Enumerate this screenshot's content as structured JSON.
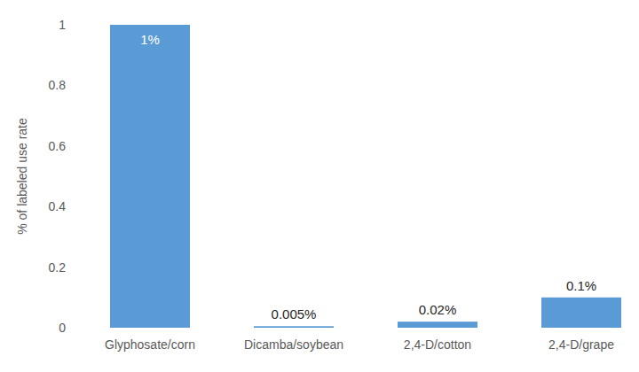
{
  "chart_data": {
    "type": "bar",
    "y_label": "% of labeled use rate",
    "categories": [
      "Glyphosate/corn",
      "Dicamba/soybean",
      "2,4-D/cotton",
      "2,4-D/grape"
    ],
    "values": [
      1,
      0.005,
      0.02,
      0.1
    ],
    "value_labels": [
      "1%",
      "0.005%",
      "0.02%",
      "0.1%"
    ],
    "color": "#5b9bd5",
    "ylim": [
      0,
      1
    ],
    "yticks": [
      0,
      0.2,
      0.4,
      0.6,
      0.8,
      1
    ],
    "grid": false,
    "data_labels": true
  }
}
